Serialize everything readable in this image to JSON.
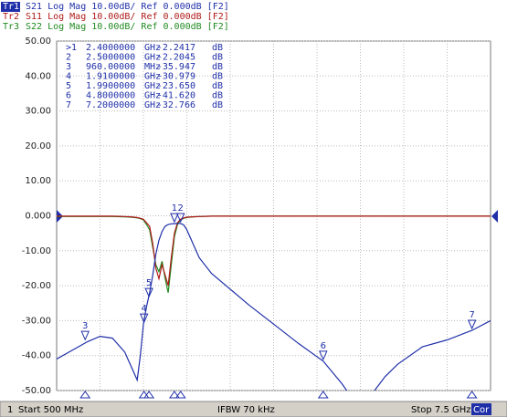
{
  "header": {
    "traces": [
      {
        "id": "Tr1",
        "text": "S21 Log Mag 10.00dB/ Ref 0.000dB [F2]",
        "color": "#1f2fa8"
      },
      {
        "id": "Tr2",
        "text": "S11 Log Mag 10.00dB/ Ref 0.000dB [F2]",
        "color": "#b01818"
      },
      {
        "id": "Tr3",
        "text": "S22 Log Mag 10.00dB/ Ref 0.000dB [F2]",
        "color": "#208a20"
      }
    ]
  },
  "marker_table": [
    [
      ">1",
      "2.4000000",
      "GHz",
      "-2.2417",
      "dB"
    ],
    [
      "2",
      "2.5000000",
      "GHz",
      "-2.2045",
      "dB"
    ],
    [
      "3",
      "960.00000",
      "MHz",
      "-35.947",
      "dB"
    ],
    [
      "4",
      "1.9100000",
      "GHz",
      "-30.979",
      "dB"
    ],
    [
      "5",
      "1.9900000",
      "GHz",
      "-23.650",
      "dB"
    ],
    [
      "6",
      "4.8000000",
      "GHz",
      "-41.620",
      "dB"
    ],
    [
      "7",
      "7.2000000",
      "GHz",
      "-32.766",
      "dB"
    ]
  ],
  "chart_data": {
    "type": "line",
    "x": [
      0.5,
      0.8,
      1.0,
      1.2,
      1.4,
      1.6,
      1.7,
      1.8,
      1.85,
      1.9,
      1.95,
      2.0,
      2.05,
      2.1,
      2.15,
      2.2,
      2.25,
      2.3,
      2.35,
      2.4,
      2.45,
      2.5,
      2.55,
      2.6,
      2.7,
      2.8,
      3.0,
      3.3,
      3.6,
      4.0,
      4.4,
      4.8,
      5.1,
      5.3,
      5.5,
      5.8,
      6.0,
      6.4,
      6.8,
      7.2,
      7.5
    ],
    "series": [
      {
        "name": "Tr1",
        "color": "#1f2fa8",
        "values": [
          -41,
          -38,
          -36,
          -34.5,
          -35,
          -39,
          -43,
          -47,
          -40,
          -31,
          -26,
          -22,
          -17,
          -11,
          -7,
          -4.5,
          -3,
          -2.5,
          -2.3,
          -2.24,
          -2.2,
          -2.2,
          -2.6,
          -4,
          -8,
          -12,
          -16.5,
          -21,
          -25.5,
          -31,
          -36.5,
          -41.6,
          -48,
          -53,
          -53,
          -46,
          -42.5,
          -37.5,
          -35.5,
          -32.8,
          -30
        ]
      },
      {
        "name": "Tr2",
        "color": "#b01818",
        "values": [
          -0.1,
          -0.1,
          -0.1,
          -0.1,
          -0.1,
          -0.2,
          -0.3,
          -0.5,
          -0.7,
          -1,
          -2,
          -3,
          -8,
          -15,
          -18,
          -14,
          -17,
          -20,
          -12,
          -5,
          -2,
          -1,
          -0.6,
          -0.4,
          -0.3,
          -0.2,
          -0.1,
          -0.1,
          -0.1,
          -0.1,
          -0.1,
          -0.1,
          -0.1,
          -0.1,
          -0.1,
          -0.1,
          -0.1,
          -0.1,
          -0.1,
          -0.1,
          -0.1
        ]
      },
      {
        "name": "Tr3",
        "color": "#208a20",
        "values": [
          -0.2,
          -0.2,
          -0.2,
          -0.2,
          -0.2,
          -0.3,
          -0.4,
          -0.6,
          -0.8,
          -1.2,
          -2.5,
          -4,
          -9,
          -14,
          -16,
          -13,
          -18,
          -22,
          -14,
          -6,
          -2.5,
          -1.2,
          -0.7,
          -0.5,
          -0.3,
          -0.2,
          -0.1,
          -0.1,
          -0.1,
          -0.1,
          -0.1,
          -0.1,
          -0.1,
          -0.1,
          -0.1,
          -0.1,
          -0.1,
          -0.1,
          -0.1,
          -0.1,
          -0.1
        ]
      }
    ],
    "markers": [
      {
        "label": "1",
        "x": 2.4,
        "y": -2.2417
      },
      {
        "label": "2",
        "x": 2.5,
        "y": -2.2045
      },
      {
        "label": "3",
        "x": 0.96,
        "y": -35.947
      },
      {
        "label": "4",
        "x": 1.91,
        "y": -30.979
      },
      {
        "label": "5",
        "x": 1.99,
        "y": -23.65
      },
      {
        "label": "6",
        "x": 4.8,
        "y": -41.62
      },
      {
        "label": "7",
        "x": 7.2,
        "y": -32.766
      }
    ],
    "xlim": [
      0.5,
      7.5
    ],
    "x_divisions": 10,
    "ylim": [
      -50,
      50
    ],
    "yticks": [
      {
        "value": 50,
        "label": "50.00"
      },
      {
        "value": 40,
        "label": "40.00"
      },
      {
        "value": 30,
        "label": "30.00"
      },
      {
        "value": 20,
        "label": "20.00"
      },
      {
        "value": 10,
        "label": "10.00"
      },
      {
        "value": 0,
        "label": "0.000"
      },
      {
        "value": -10,
        "label": "-10.00"
      },
      {
        "value": -20,
        "label": "-20.00"
      },
      {
        "value": -30,
        "label": "-30.00"
      },
      {
        "value": -40,
        "label": "-40.00"
      },
      {
        "value": -50,
        "label": "-50.00"
      }
    ],
    "grid": true
  },
  "status": {
    "channel": "1",
    "start": "Start 500 MHz",
    "ifbw": "IFBW 70 kHz",
    "stop": "Stop 7.5 GHz",
    "cor": "Cor"
  }
}
